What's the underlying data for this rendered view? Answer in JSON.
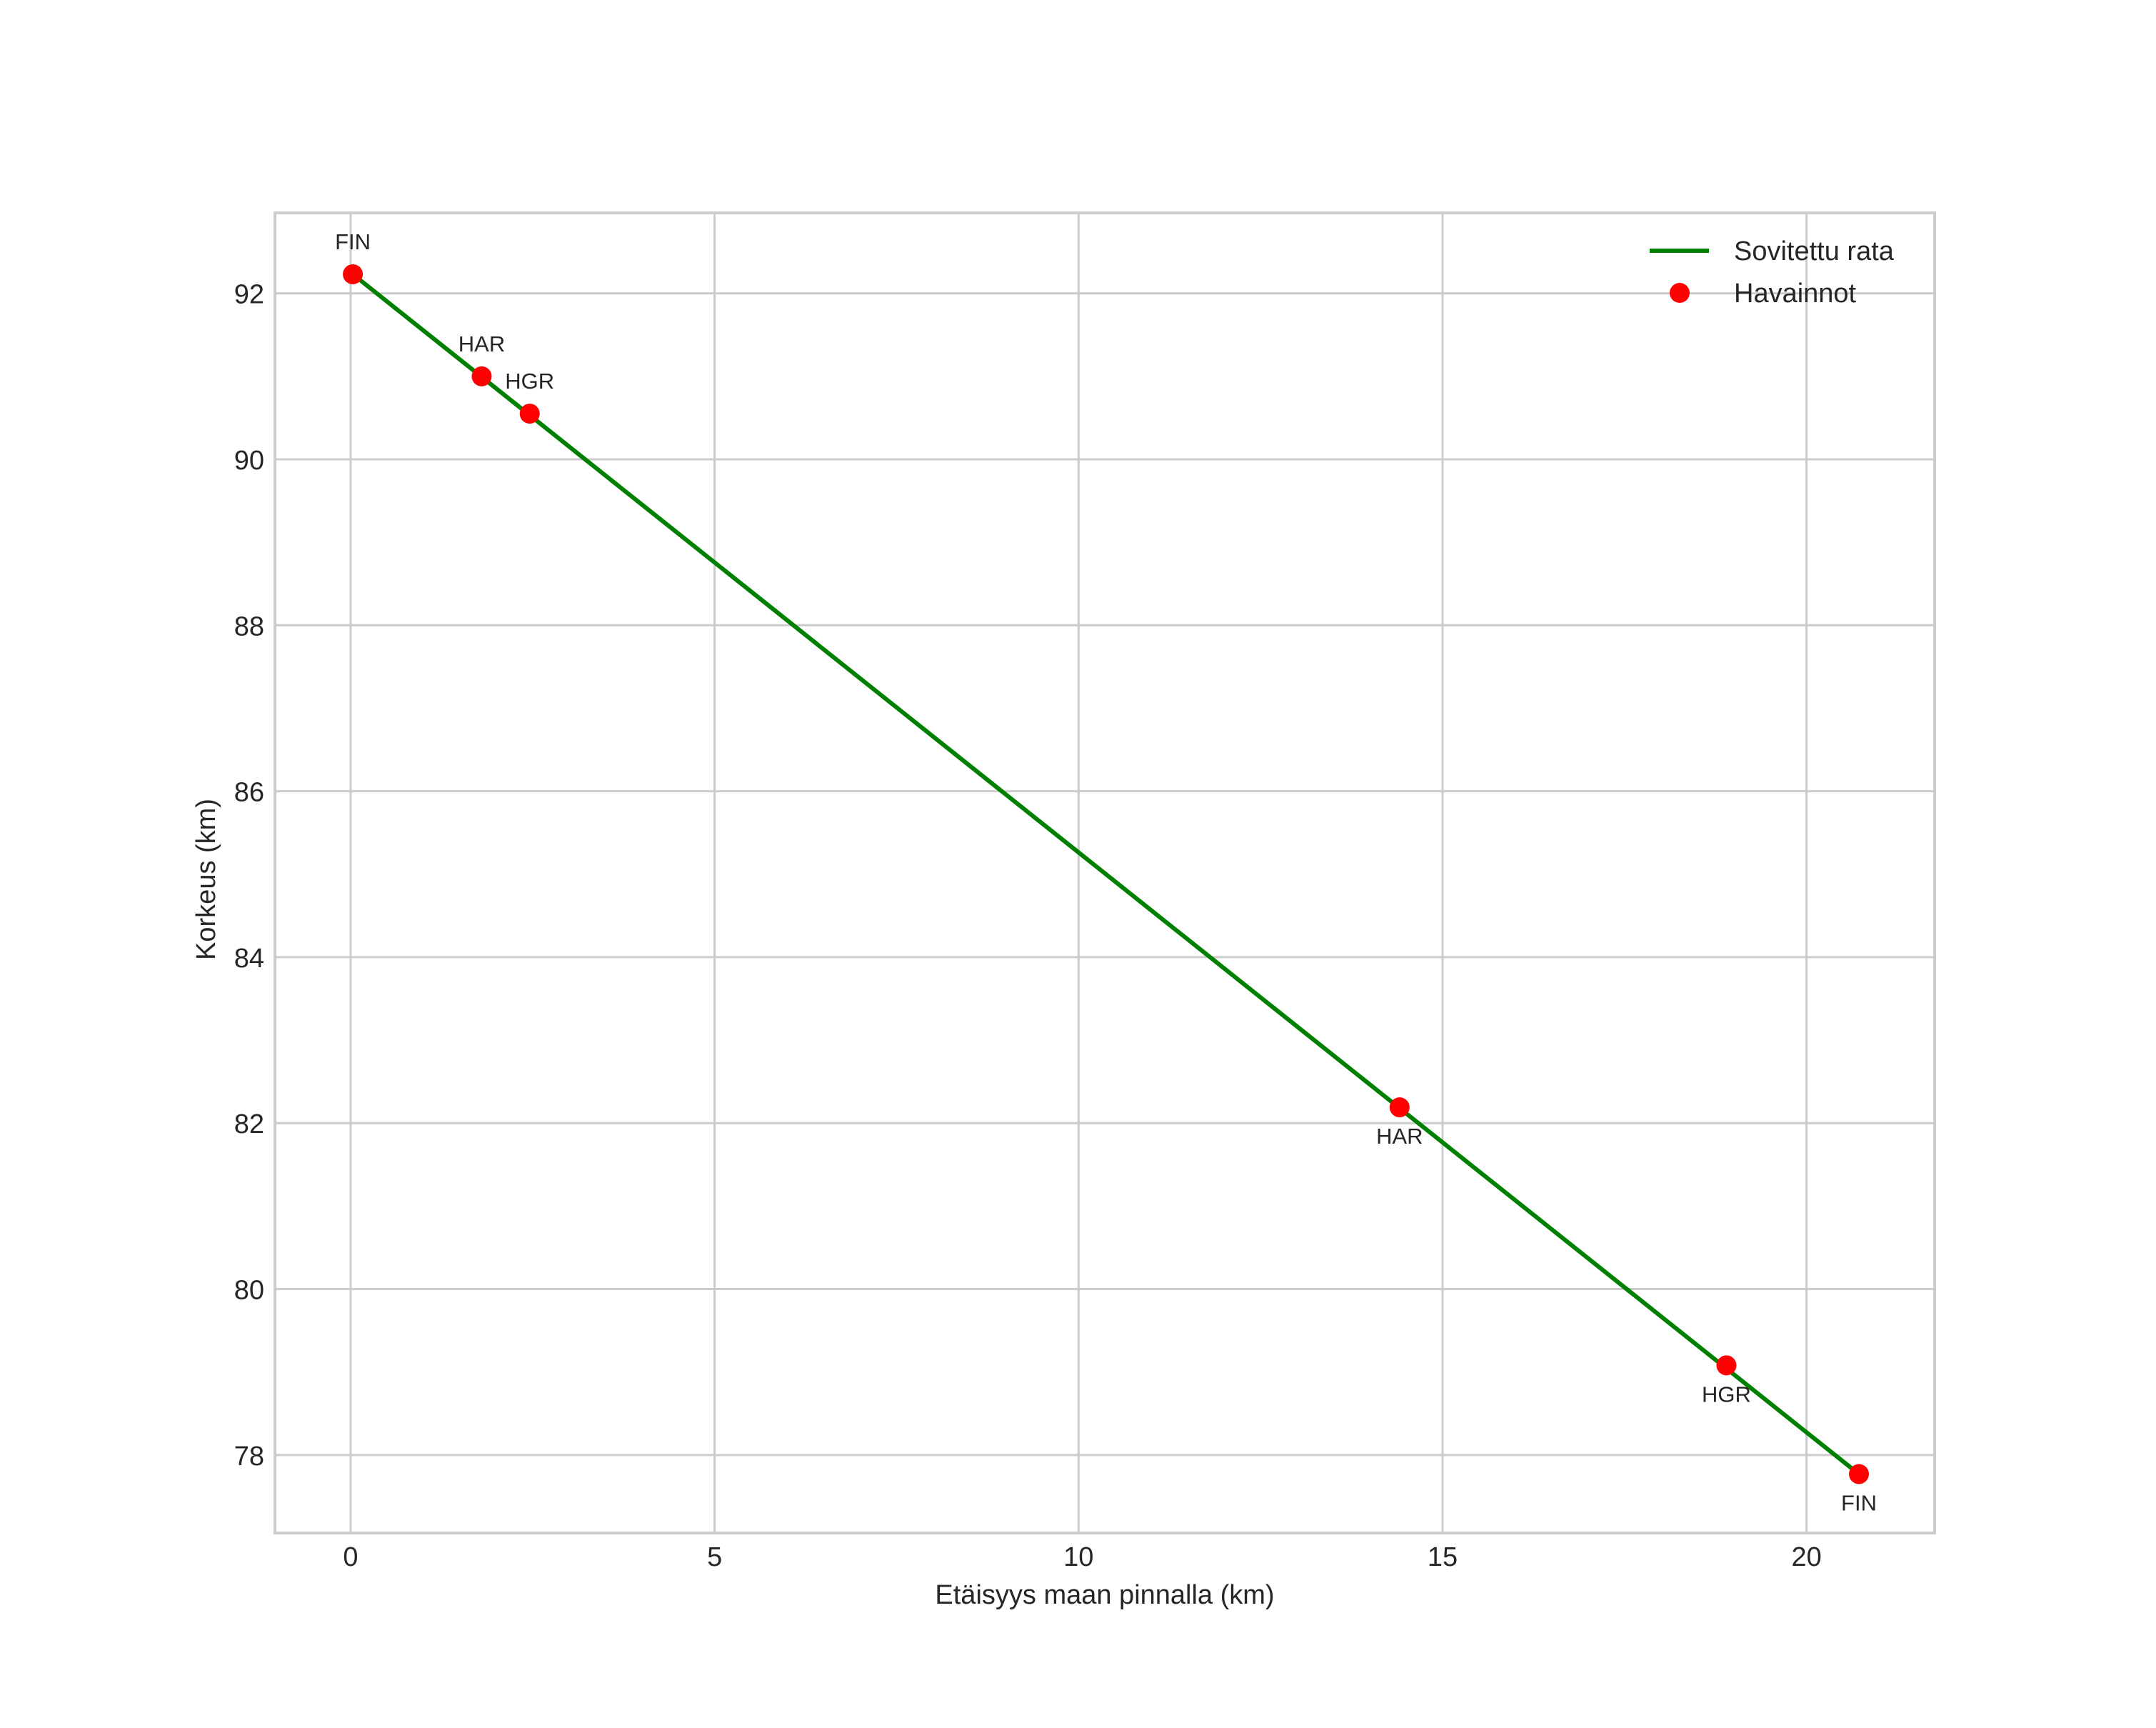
{
  "chart_data": {
    "type": "line",
    "title": "",
    "xlabel": "Etäisyys maan pinnalla (km)",
    "ylabel": "Korkeus (km)",
    "xlim": [
      -1.04,
      21.76
    ],
    "ylim": [
      77.06,
      92.97
    ],
    "xticks": [
      0,
      5,
      10,
      15,
      20
    ],
    "yticks": [
      78,
      80,
      82,
      84,
      86,
      88,
      90,
      92
    ],
    "grid": true,
    "legend_position": "upper right",
    "series": [
      {
        "name": "Sovitettu rata",
        "kind": "line",
        "color": "#008000",
        "x": [
          0.03,
          20.72
        ],
        "y": [
          92.23,
          77.77
        ]
      },
      {
        "name": "Havainnot",
        "kind": "scatter",
        "color": "#ff0000",
        "points": [
          {
            "x": 0.03,
            "y": 92.23,
            "label": "FIN",
            "label_pos": "above"
          },
          {
            "x": 1.8,
            "y": 91.0,
            "label": "HAR",
            "label_pos": "above"
          },
          {
            "x": 2.46,
            "y": 90.55,
            "label": "HGR",
            "label_pos": "above"
          },
          {
            "x": 14.41,
            "y": 82.19,
            "label": "HAR",
            "label_pos": "below"
          },
          {
            "x": 18.9,
            "y": 79.08,
            "label": "HGR",
            "label_pos": "below"
          },
          {
            "x": 20.72,
            "y": 77.77,
            "label": "FIN",
            "label_pos": "below"
          }
        ]
      }
    ]
  },
  "legend": {
    "items": [
      {
        "label": "Sovitettu rata",
        "icon": "green-line-icon"
      },
      {
        "label": "Havainnot",
        "icon": "red-dot-icon"
      }
    ]
  },
  "colors": {
    "grid": "#cccccc",
    "frame": "#cccccc",
    "fit_line": "#008000",
    "observations": "#ff0000",
    "text": "#262626"
  }
}
